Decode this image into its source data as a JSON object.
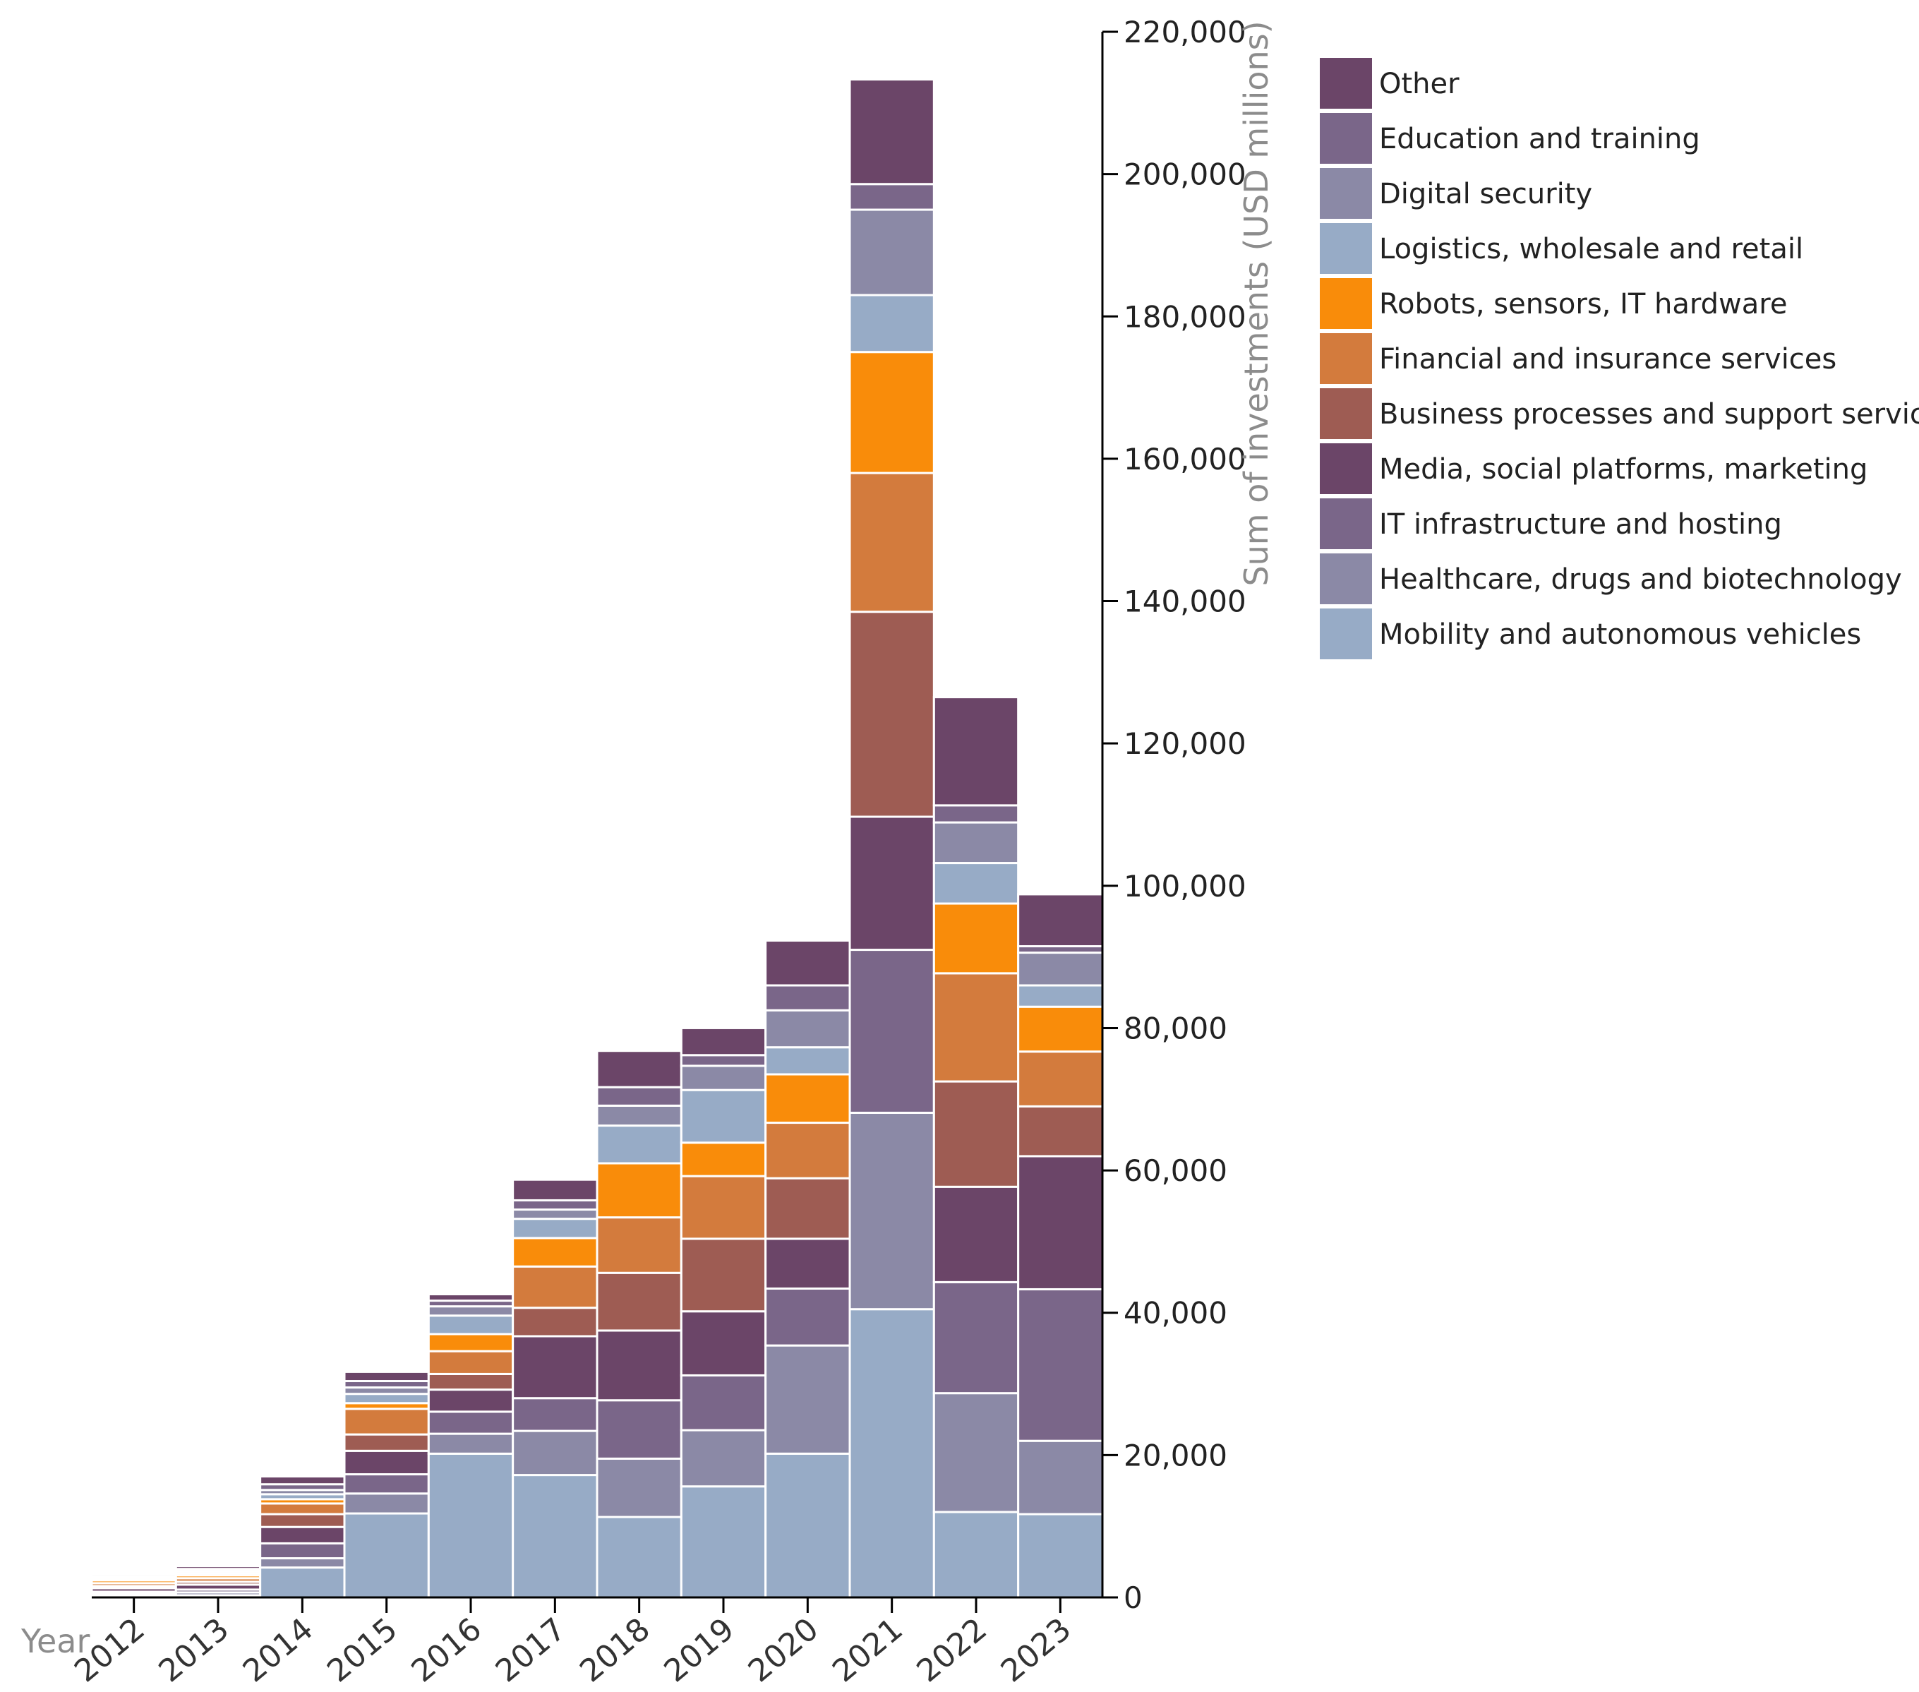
{
  "chart_data": {
    "type": "bar",
    "stacked": true,
    "title": "",
    "xlabel": "Year",
    "ylabel": "Sum of investments (USD millions)",
    "ylim": [
      0,
      220000
    ],
    "y_ticks": [
      0,
      20000,
      40000,
      60000,
      80000,
      100000,
      120000,
      140000,
      160000,
      180000,
      200000,
      220000
    ],
    "y_tick_labels": [
      "0",
      "20,000",
      "40,000",
      "60,000",
      "80,000",
      "100,000",
      "120,000",
      "140,000",
      "160,000",
      "180,000",
      "200,000",
      "220,000"
    ],
    "y_axis_position": "right",
    "grid": false,
    "legend_position": "right",
    "categories": [
      "2012",
      "2013",
      "2014",
      "2015",
      "2016",
      "2017",
      "2018",
      "2019",
      "2020",
      "2021",
      "2022",
      "2023"
    ],
    "series": [
      {
        "name": "Mobility and autonomous vehicles",
        "color": "#97abc6",
        "values": [
          200,
          300,
          4200,
          11800,
          20200,
          17200,
          11300,
          15600,
          20200,
          40500,
          12000,
          11700
        ]
      },
      {
        "name": "Healthcare, drugs and biotechnology",
        "color": "#8b89a6",
        "values": [
          300,
          400,
          1300,
          2800,
          2800,
          6200,
          8200,
          7900,
          15200,
          27600,
          16700,
          10300
        ]
      },
      {
        "name": "IT infrastructure and hosting",
        "color": "#7a6689",
        "values": [
          300,
          400,
          2100,
          2700,
          3100,
          4600,
          8200,
          7700,
          8000,
          22900,
          15600,
          21300
        ]
      },
      {
        "name": "Media, social platforms, marketing",
        "color": "#6b4568",
        "values": [
          500,
          700,
          2300,
          3300,
          3100,
          8700,
          9800,
          9000,
          7000,
          18700,
          13400,
          18700
        ]
      },
      {
        "name": "Business processes and support services",
        "color": "#9e5c53",
        "values": [
          300,
          400,
          1800,
          2300,
          2200,
          4000,
          8100,
          10200,
          8500,
          28800,
          14800,
          7000
        ]
      },
      {
        "name": "Financial and insurance services",
        "color": "#d37b3d",
        "values": [
          400,
          500,
          1500,
          3600,
          3200,
          5800,
          7800,
          8800,
          7800,
          19500,
          15200,
          7700
        ]
      },
      {
        "name": "Robots, sensors, IT hardware",
        "color": "#f98c0a",
        "values": [
          400,
          400,
          600,
          800,
          2400,
          4000,
          7600,
          4700,
          6800,
          17000,
          9800,
          6300
        ]
      },
      {
        "name": "Logistics, wholesale and retail",
        "color": "#97abc6",
        "values": [
          200,
          300,
          700,
          1300,
          2600,
          2700,
          5300,
          7400,
          3800,
          8000,
          5700,
          3000
        ]
      },
      {
        "name": "Digital security",
        "color": "#8b89a6",
        "values": [
          200,
          300,
          600,
          900,
          1300,
          1300,
          2800,
          3400,
          5200,
          12000,
          5700,
          4600
        ]
      },
      {
        "name": "Education and training",
        "color": "#7a6689",
        "values": [
          200,
          300,
          800,
          900,
          800,
          1300,
          2600,
          1500,
          3500,
          3600,
          2400,
          900
        ]
      },
      {
        "name": "Other",
        "color": "#6b4568",
        "values": [
          300,
          400,
          1100,
          1300,
          900,
          2900,
          5100,
          3800,
          6300,
          14700,
          15200,
          7300
        ]
      }
    ]
  }
}
